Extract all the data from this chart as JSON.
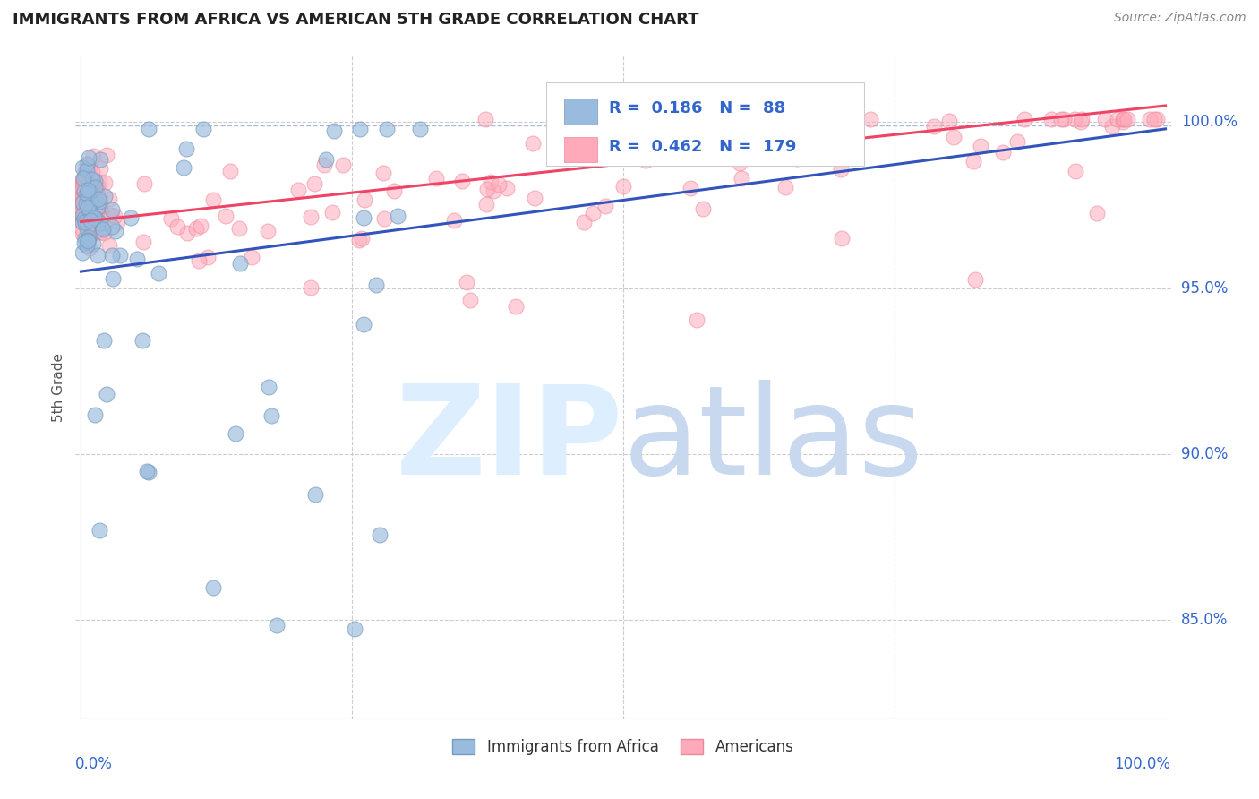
{
  "title": "IMMIGRANTS FROM AFRICA VS AMERICAN 5TH GRADE CORRELATION CHART",
  "source": "Source: ZipAtlas.com",
  "ylabel": "5th Grade",
  "ytick_labels": [
    "85.0%",
    "90.0%",
    "95.0%",
    "100.0%"
  ],
  "ytick_values": [
    0.85,
    0.9,
    0.95,
    1.0
  ],
  "legend_blue_label": "Immigrants from Africa",
  "legend_pink_label": "Americans",
  "R_blue": 0.186,
  "N_blue": 88,
  "R_pink": 0.462,
  "N_pink": 179,
  "blue_color": "#99BBDD",
  "pink_color": "#FFAABB",
  "blue_scatter_edge": "#7799BB",
  "pink_scatter_edge": "#EE8899",
  "blue_line_color": "#3355BB",
  "pink_line_color": "#EE4466",
  "dashed_line_color": "#AABBDD",
  "title_color": "#222222",
  "axis_label_color": "#3366CC",
  "right_label_color": "#3366CC",
  "watermark_zip_color": "#DDEEFF",
  "watermark_atlas_color": "#C8D8EE",
  "background_color": "#FFFFFF",
  "grid_color": "#CCCCCC",
  "legend_text_R_color": "#3366CC",
  "legend_text_N_color": "#222222",
  "xlim": [
    0.0,
    1.0
  ],
  "ylim": [
    0.82,
    1.02
  ],
  "blue_trend_x0": 0.0,
  "blue_trend_x1": 1.0,
  "blue_trend_y0": 0.955,
  "blue_trend_y1": 0.998,
  "pink_trend_x0": 0.0,
  "pink_trend_x1": 1.0,
  "pink_trend_y0": 0.97,
  "pink_trend_y1": 1.005
}
